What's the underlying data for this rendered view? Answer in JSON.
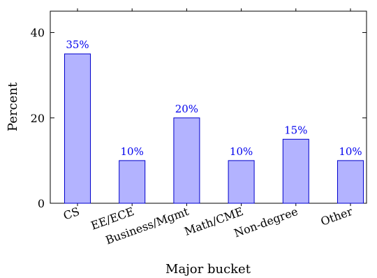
{
  "chart_data": {
    "type": "bar",
    "categories": [
      "CS",
      "EE/ECE",
      "Business/Mgmt",
      "Math/CME",
      "Non-degree",
      "Other"
    ],
    "values": [
      35,
      10,
      20,
      10,
      15,
      10
    ],
    "data_labels": [
      "35%",
      "10%",
      "20%",
      "10%",
      "15%",
      "10%"
    ],
    "title": "",
    "xlabel": "Major bucket",
    "ylabel": "Percent",
    "ylim": [
      0,
      45
    ],
    "yticks": [
      0,
      20,
      40
    ],
    "ytick_labels": [
      "0",
      "20",
      "40"
    ],
    "grid": false,
    "colors": {
      "bar_fill": "#b3b3ff",
      "bar_stroke": "#0000cc",
      "data_label": "#0000ee",
      "axis": "#000000"
    }
  }
}
